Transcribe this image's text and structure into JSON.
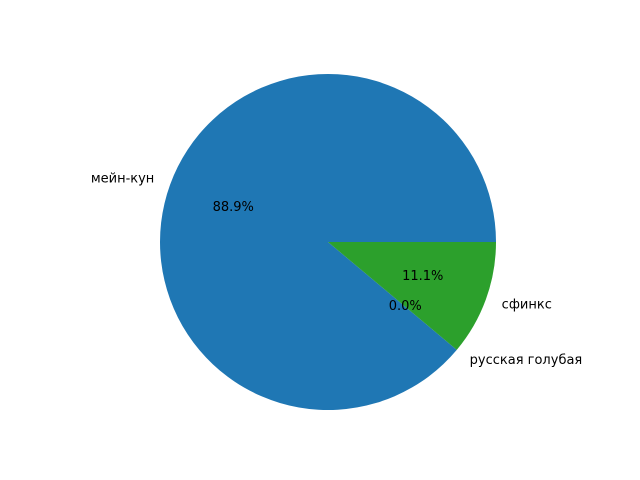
{
  "chart_data": {
    "type": "pie",
    "title": "",
    "counterclock": true,
    "start_angle_deg": 0,
    "slices": [
      {
        "label": "мейн-кун",
        "value": 88.9,
        "pct_label": "88.9%",
        "color": "#1f77b4"
      },
      {
        "label": "русская голубая",
        "value": 0.0,
        "pct_label": "0.0%",
        "color": "#ff7f0e"
      },
      {
        "label": "сфинкс",
        "value": 11.1,
        "pct_label": "11.1%",
        "color": "#2ca02c"
      }
    ]
  }
}
